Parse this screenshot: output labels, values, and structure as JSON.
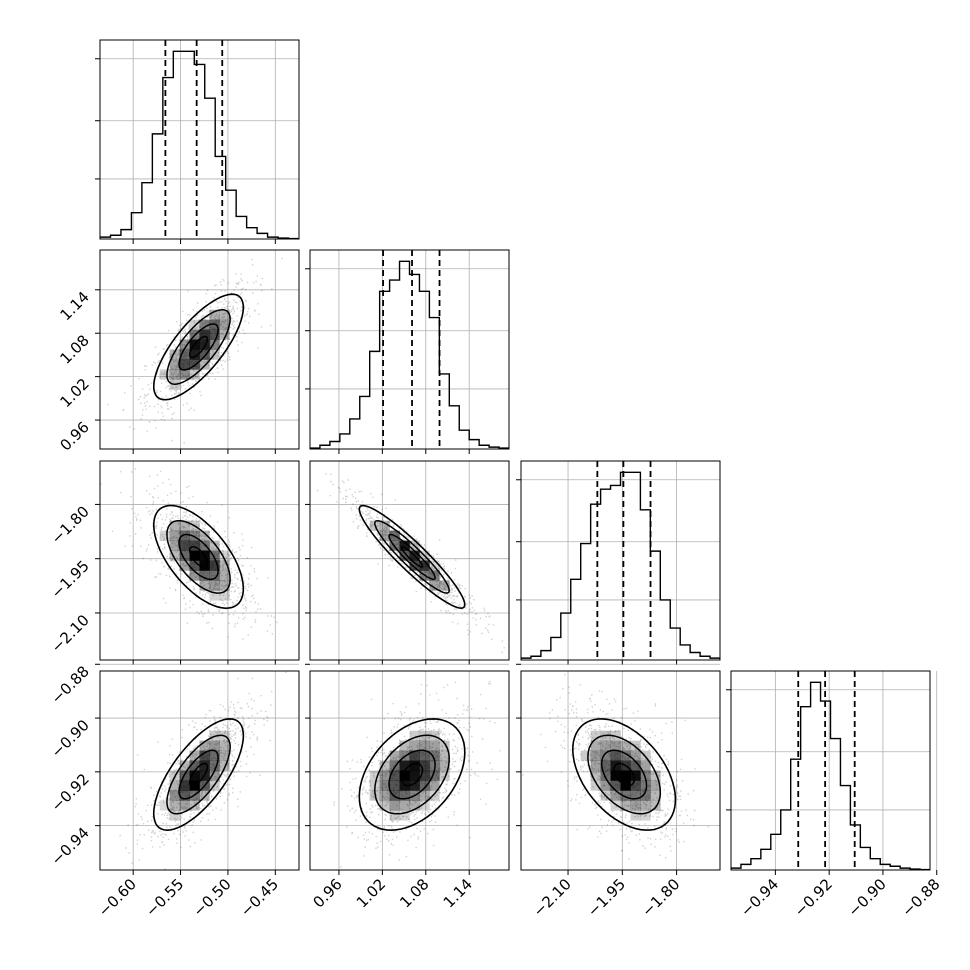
{
  "chart_data": {
    "type": "corner",
    "parameters": [
      {
        "range": [
          -0.635,
          -0.425
        ],
        "ticks": [
          "-0.60",
          "-0.55",
          "-0.50",
          "-0.45"
        ],
        "tick_values": [
          -0.6,
          -0.55,
          -0.5,
          -0.45
        ],
        "quantiles": [
          -0.566,
          -0.533,
          -0.506
        ],
        "hist": [
          0.01,
          0.02,
          0.05,
          0.14,
          0.3,
          0.56,
          0.86,
          1.0,
          1.0,
          0.93,
          0.75,
          0.44,
          0.26,
          0.12,
          0.06,
          0.03,
          0.01,
          0.005,
          0.002
        ],
        "ylim_max": 1.06,
        "hist_gridlines": [
          0.32,
          0.63,
          0.96
        ],
        "mean": -0.531,
        "std": 0.024
      },
      {
        "range": [
          0.92,
          1.195
        ],
        "ticks": [
          "0.96",
          "1.02",
          "1.08",
          "1.14"
        ],
        "tick_values": [
          0.96,
          1.02,
          1.08,
          1.14
        ],
        "quantiles": [
          1.021,
          1.061,
          1.099
        ],
        "hist": [
          0.005,
          0.02,
          0.04,
          0.08,
          0.16,
          0.28,
          0.52,
          0.84,
          0.9,
          1.0,
          0.93,
          0.84,
          0.7,
          0.4,
          0.23,
          0.1,
          0.05,
          0.02,
          0.01,
          0.005
        ],
        "ylim_max": 1.06,
        "hist_gridlines": [
          0.32,
          0.63,
          0.96
        ],
        "mean": 1.061,
        "std": 0.037
      },
      {
        "range": [
          -2.23,
          -1.68
        ],
        "ticks": [
          "-2.10",
          "-1.95",
          "-1.80"
        ],
        "tick_values": [
          -2.1,
          -1.95,
          -1.8
        ],
        "quantiles": [
          -2.019,
          -1.947,
          -1.872
        ],
        "hist": [
          0.01,
          0.02,
          0.05,
          0.12,
          0.25,
          0.43,
          0.62,
          0.83,
          0.91,
          0.93,
          1.0,
          1.0,
          0.8,
          0.58,
          0.32,
          0.17,
          0.08,
          0.04,
          0.02,
          0.01
        ],
        "ylim_max": 1.06,
        "hist_gridlines": [
          0.32,
          0.63,
          0.96
        ],
        "mean": -1.945,
        "std": 0.072
      },
      {
        "range": [
          -0.9565,
          -0.8825
        ],
        "ticks": [
          "-0.94",
          "-0.92",
          "-0.90",
          "-0.88"
        ],
        "tick_values": [
          -0.94,
          -0.92,
          -0.9,
          -0.88
        ],
        "quantiles": [
          -0.9315,
          -0.9215,
          -0.9105
        ],
        "hist": [
          0.01,
          0.03,
          0.06,
          0.11,
          0.19,
          0.32,
          0.59,
          0.87,
          1.0,
          0.9,
          0.7,
          0.45,
          0.24,
          0.12,
          0.06,
          0.03,
          0.02,
          0.01,
          0.005,
          0.002
        ],
        "ylim_max": 1.06,
        "hist_gridlines": [
          0.32,
          0.63,
          0.96
        ],
        "mean": -0.921,
        "std": 0.0105
      }
    ],
    "correlations": [
      [
        1.0,
        0.75,
        -0.62,
        0.7
      ],
      [
        0.75,
        1.0,
        -0.93,
        0.4
      ],
      [
        -0.62,
        -0.93,
        1.0,
        -0.45
      ],
      [
        0.7,
        0.4,
        -0.45,
        1.0
      ]
    ],
    "contour_levels": [
      0.39,
      0.86,
      1.39,
      1.97
    ],
    "grid": true,
    "colors": {
      "line": "#000000",
      "grid": "#b0b0b0",
      "scatter": "#000000",
      "density": "#000000"
    }
  }
}
